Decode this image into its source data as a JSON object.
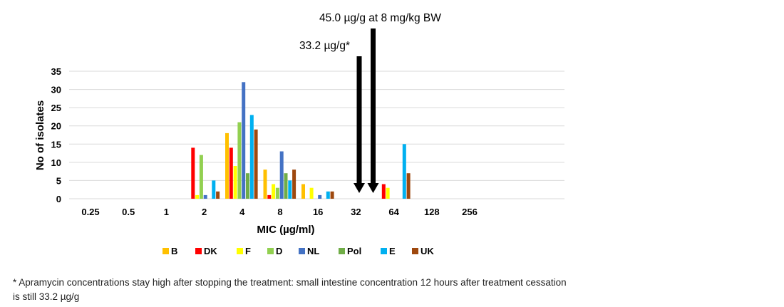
{
  "chart_data": {
    "type": "bar",
    "title": "",
    "xlabel": "MIC (µg/ml)",
    "ylabel": "No of isolates",
    "ylim": [
      0,
      35
    ],
    "yticks": [
      0,
      5,
      10,
      15,
      20,
      25,
      30,
      35
    ],
    "grid": true,
    "legend_position": "bottom",
    "categories": [
      "0.25",
      "0.5",
      "1",
      "2",
      "4",
      "8",
      "16",
      "32",
      "64",
      "128",
      "256"
    ],
    "series": [
      {
        "name": "B",
        "color": "#FFC000",
        "values": [
          0,
          0,
          0,
          0,
          18,
          8,
          4,
          0,
          0,
          0,
          0
        ]
      },
      {
        "name": "DK",
        "color": "#FF0000",
        "values": [
          0,
          0,
          0,
          14,
          14,
          1,
          0,
          0,
          4,
          0,
          0
        ]
      },
      {
        "name": "F",
        "color": "#FFFF00",
        "values": [
          0,
          0,
          0,
          1,
          9,
          4,
          3,
          0,
          3,
          0,
          0
        ]
      },
      {
        "name": "D",
        "color": "#92D050",
        "values": [
          0,
          0,
          0,
          12,
          21,
          3,
          0,
          0,
          0,
          0,
          0
        ]
      },
      {
        "name": "NL",
        "color": "#4472C4",
        "values": [
          0,
          0,
          0,
          1,
          32,
          13,
          1,
          0,
          0,
          0,
          0
        ]
      },
      {
        "name": "Pol",
        "color": "#70AD47",
        "values": [
          0,
          0,
          0,
          0,
          7,
          7,
          0,
          0,
          0,
          0,
          0
        ]
      },
      {
        "name": "E",
        "color": "#00B0F0",
        "values": [
          0,
          0,
          0,
          5,
          23,
          5,
          2,
          0,
          15,
          0,
          0
        ]
      },
      {
        "name": "UK",
        "color": "#9E480E",
        "values": [
          0,
          0,
          0,
          2,
          19,
          8,
          2,
          0,
          7,
          0,
          0
        ]
      }
    ],
    "annotations": [
      {
        "label": "33.2 µg/g*",
        "type": "arrow-down",
        "category_position": "between 32 and 64",
        "height_value": 39
      },
      {
        "label": "45.0 µg/g at 8 mg/kg BW",
        "type": "arrow-down",
        "category_position": "between 32 and 64",
        "height_value": 47
      }
    ]
  },
  "footnote": "* Apramycin concentrations stay high after stopping the treatment: small intestine concentration 12 hours after treatment cessation is still 33.2 µg/g"
}
